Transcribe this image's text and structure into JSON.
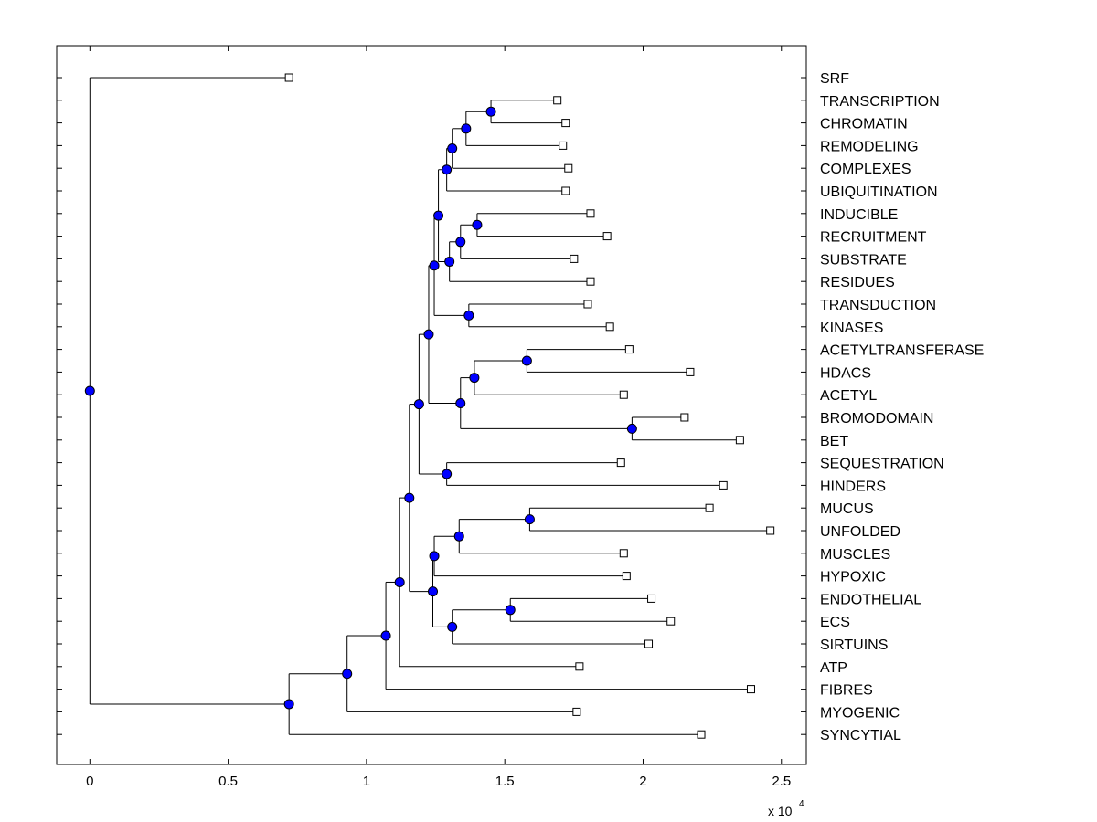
{
  "chart_data": {
    "type": "dendrogram",
    "title": "",
    "xlabel": "",
    "ylabel": "",
    "x_tick_labels": [
      "0",
      "0.5",
      "1",
      "1.5",
      "2",
      "2.5"
    ],
    "x_ticks": [
      0,
      0.5,
      1,
      1.5,
      2,
      2.5
    ],
    "x_exponent": {
      "base": "x 10",
      "power": "4"
    },
    "xlim": [
      -0.12,
      2.59
    ],
    "marker_colors": {
      "internal": "#0000ff",
      "leaf_fill": "#ffffff",
      "line": "#000000"
    },
    "leaves": [
      {
        "label": "SRF",
        "x": 0.72
      },
      {
        "label": "TRANSCRIPTION",
        "x": 1.69
      },
      {
        "label": "CHROMATIN",
        "x": 1.72
      },
      {
        "label": "REMODELING",
        "x": 1.71
      },
      {
        "label": "COMPLEXES",
        "x": 1.73
      },
      {
        "label": "UBIQUITINATION",
        "x": 1.72
      },
      {
        "label": "INDUCIBLE",
        "x": 1.81
      },
      {
        "label": "RECRUITMENT",
        "x": 1.87
      },
      {
        "label": "SUBSTRATE",
        "x": 1.75
      },
      {
        "label": "RESIDUES",
        "x": 1.81
      },
      {
        "label": "TRANSDUCTION",
        "x": 1.8
      },
      {
        "label": "KINASES",
        "x": 1.88
      },
      {
        "label": "ACETYLTRANSFERASE",
        "x": 1.95
      },
      {
        "label": "HDACS",
        "x": 2.17
      },
      {
        "label": "ACETYL",
        "x": 1.93
      },
      {
        "label": "BROMODOMAIN",
        "x": 2.15
      },
      {
        "label": "BET",
        "x": 2.35
      },
      {
        "label": "SEQUESTRATION",
        "x": 1.92
      },
      {
        "label": "HINDERS",
        "x": 2.29
      },
      {
        "label": "MUCUS",
        "x": 2.24
      },
      {
        "label": "UNFOLDED",
        "x": 2.46
      },
      {
        "label": "MUSCLES",
        "x": 1.93
      },
      {
        "label": "HYPOXIC",
        "x": 1.94
      },
      {
        "label": "ENDOTHELIAL",
        "x": 2.03
      },
      {
        "label": "ECS",
        "x": 2.1
      },
      {
        "label": "SIRTUINS",
        "x": 2.02
      },
      {
        "label": "ATP",
        "x": 1.77
      },
      {
        "label": "FIBRES",
        "x": 2.39
      },
      {
        "label": "MYOGENIC",
        "x": 1.76
      },
      {
        "label": "SYNCYTIAL",
        "x": 2.21
      }
    ],
    "nodes": [
      {
        "id": "n_tc",
        "x": 1.45,
        "children": [
          "L1",
          "L2"
        ]
      },
      {
        "id": "n_tcr",
        "x": 1.36,
        "children": [
          "n_tc",
          "L3"
        ]
      },
      {
        "id": "n_tcrc",
        "x": 1.31,
        "children": [
          "n_tcr",
          "L4"
        ]
      },
      {
        "id": "n_tcrcu",
        "x": 1.29,
        "children": [
          "n_tcrc",
          "L5"
        ]
      },
      {
        "id": "n_ir",
        "x": 1.4,
        "children": [
          "L6",
          "L7"
        ]
      },
      {
        "id": "n_irs",
        "x": 1.34,
        "children": [
          "n_ir",
          "L8"
        ]
      },
      {
        "id": "n_irsr",
        "x": 1.3,
        "children": [
          "n_irs",
          "L9"
        ]
      },
      {
        "id": "n_tk",
        "x": 1.37,
        "children": [
          "L10",
          "L11"
        ]
      },
      {
        "id": "n_g1",
        "x": 1.26,
        "children": [
          "n_tcrcu",
          "n_irsr"
        ]
      },
      {
        "id": "n_g2",
        "x": 1.245,
        "children": [
          "n_g1",
          "n_tk"
        ]
      },
      {
        "id": "n_ah",
        "x": 1.58,
        "children": [
          "L12",
          "L13"
        ]
      },
      {
        "id": "n_aha",
        "x": 1.39,
        "children": [
          "n_ah",
          "L14"
        ]
      },
      {
        "id": "n_bb",
        "x": 1.96,
        "children": [
          "L15",
          "L16"
        ]
      },
      {
        "id": "n_ahabb",
        "x": 1.34,
        "children": [
          "n_aha",
          "n_bb"
        ]
      },
      {
        "id": "n_g3",
        "x": 1.225,
        "children": [
          "n_g2",
          "n_ahabb"
        ]
      },
      {
        "id": "n_sh",
        "x": 1.29,
        "children": [
          "L17",
          "L18"
        ]
      },
      {
        "id": "n_g4",
        "x": 1.19,
        "children": [
          "n_g3",
          "n_sh"
        ]
      },
      {
        "id": "n_mu",
        "x": 1.59,
        "children": [
          "L19",
          "L20"
        ]
      },
      {
        "id": "n_mum",
        "x": 1.335,
        "children": [
          "n_mu",
          "L21"
        ]
      },
      {
        "id": "n_mumh",
        "x": 1.245,
        "children": [
          "n_mum",
          "L22"
        ]
      },
      {
        "id": "n_ee",
        "x": 1.52,
        "children": [
          "L23",
          "L24"
        ]
      },
      {
        "id": "n_ees",
        "x": 1.31,
        "children": [
          "n_ee",
          "L25"
        ]
      },
      {
        "id": "n_g5",
        "x": 1.24,
        "children": [
          "n_mumh",
          "n_ees"
        ]
      },
      {
        "id": "n_g6",
        "x": 1.155,
        "children": [
          "n_g4",
          "n_g5"
        ]
      },
      {
        "id": "n_g7",
        "x": 1.12,
        "children": [
          "n_g6",
          "L26"
        ]
      },
      {
        "id": "n_g8",
        "x": 1.07,
        "children": [
          "n_g7",
          "L27"
        ]
      },
      {
        "id": "n_g9",
        "x": 0.93,
        "children": [
          "n_g8",
          "L28"
        ]
      },
      {
        "id": "n_g10",
        "x": 0.72,
        "children": [
          "n_g9",
          "L29"
        ]
      },
      {
        "id": "n_root",
        "x": 0.0,
        "children": [
          "L0",
          "n_g10"
        ]
      }
    ]
  }
}
